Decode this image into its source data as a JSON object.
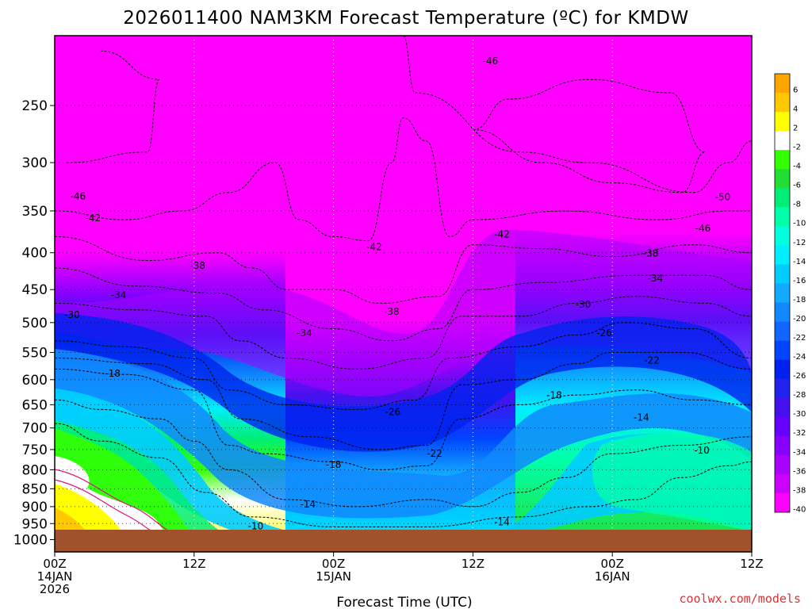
{
  "title": "2026011400 NAM3KM Forecast Temperature (ºC) for KMDW",
  "xlabel": "Forecast Time (UTC)",
  "credit": "coolwx.com/models",
  "colors": {
    "ground": "#a0522d",
    "warm_yellow": "#ffff00",
    "zero_white": "#ffffff",
    "cold_magenta": "#ff00ff"
  },
  "chart_data": {
    "type": "heatmap",
    "title": "2026011400 NAM3KM Forecast Temperature (ºC) for KMDW",
    "xlabel": "Forecast Time (UTC)",
    "ylabel": "",
    "x_ticks": [
      {
        "hour": 0,
        "lines": [
          "00Z",
          "14JAN",
          "2026"
        ]
      },
      {
        "hour": 12,
        "lines": [
          "12Z"
        ]
      },
      {
        "hour": 24,
        "lines": [
          "00Z",
          "15JAN"
        ]
      },
      {
        "hour": 36,
        "lines": [
          "12Z"
        ]
      },
      {
        "hour": 48,
        "lines": [
          "00Z",
          "16JAN"
        ]
      },
      {
        "hour": 60,
        "lines": [
          "12Z"
        ]
      }
    ],
    "xlim_hours": [
      0,
      60
    ],
    "y_ticks": [
      250,
      300,
      350,
      400,
      450,
      500,
      550,
      600,
      650,
      700,
      750,
      800,
      850,
      900,
      950,
      1000
    ],
    "ylim_hPa": [
      1040,
      200
    ],
    "y_scale": "log-pressure",
    "grid": true,
    "colorbar_ticks": [
      6,
      4,
      2,
      -2,
      -4,
      -6,
      -8,
      -10,
      -12,
      -14,
      -16,
      -18,
      -20,
      -22,
      -24,
      -26,
      -28,
      -30,
      -32,
      -34,
      -36,
      -38,
      -40
    ],
    "colorbar_colors": [
      "#ffa500",
      "#ffc800",
      "#ffff00",
      "#ffffff",
      "#33ff00",
      "#22dd33",
      "#00ee77",
      "#00ffaa",
      "#00ffdd",
      "#00eeff",
      "#00ccff",
      "#11aaff",
      "#1188ff",
      "#1166ff",
      "#0044ff",
      "#0022ee",
      "#2222ee",
      "#4411ee",
      "#6600ff",
      "#8800ff",
      "#aa00ff",
      "#cc00ff",
      "#ff00ff"
    ],
    "isotherms": [
      {
        "value": -46,
        "points": [
          [
            1,
            300
          ],
          [
            8,
            290
          ],
          [
            9,
            230
          ],
          [
            4,
            210
          ]
        ]
      },
      {
        "value": -46,
        "points": [
          [
            30,
            200
          ],
          [
            31,
            240
          ],
          [
            40,
            290
          ],
          [
            46,
            300
          ],
          [
            55,
            330
          ],
          [
            58,
            300
          ],
          [
            60,
            280
          ]
        ]
      },
      {
        "value": -50,
        "points": [
          [
            36,
            270
          ],
          [
            42,
            300
          ],
          [
            48,
            320
          ],
          [
            54,
            330
          ],
          [
            56,
            290
          ],
          [
            53,
            240
          ],
          [
            46,
            230
          ],
          [
            39,
            245
          ],
          [
            36,
            270
          ]
        ]
      },
      {
        "value": -42,
        "points": [
          [
            0,
            350
          ],
          [
            6,
            360
          ],
          [
            11,
            350
          ],
          [
            15,
            330
          ],
          [
            19,
            300
          ],
          [
            21,
            360
          ],
          [
            24,
            380
          ],
          [
            27,
            385
          ],
          [
            29,
            300
          ],
          [
            30,
            260
          ],
          [
            32,
            280
          ],
          [
            34,
            380
          ],
          [
            36,
            360
          ],
          [
            44,
            350
          ],
          [
            52,
            360
          ],
          [
            58,
            350
          ],
          [
            60,
            350
          ]
        ]
      },
      {
        "value": -38,
        "points": [
          [
            0,
            380
          ],
          [
            8,
            410
          ],
          [
            14,
            400
          ],
          [
            17,
            420
          ],
          [
            20,
            450
          ],
          [
            24,
            450
          ],
          [
            28,
            470
          ],
          [
            33,
            460
          ],
          [
            36,
            390
          ],
          [
            42,
            395
          ],
          [
            48,
            405
          ],
          [
            55,
            390
          ],
          [
            60,
            400
          ]
        ]
      },
      {
        "value": -34,
        "points": [
          [
            0,
            420
          ],
          [
            7,
            445
          ],
          [
            14,
            455
          ],
          [
            18,
            480
          ],
          [
            24,
            510
          ],
          [
            29,
            530
          ],
          [
            33,
            510
          ],
          [
            36,
            450
          ],
          [
            42,
            440
          ],
          [
            50,
            430
          ],
          [
            56,
            430
          ],
          [
            60,
            450
          ]
        ]
      },
      {
        "value": -30,
        "points": [
          [
            0,
            470
          ],
          [
            7,
            480
          ],
          [
            13,
            490
          ],
          [
            16,
            530
          ],
          [
            20,
            560
          ],
          [
            26,
            580
          ],
          [
            32,
            560
          ],
          [
            35,
            490
          ],
          [
            40,
            490
          ],
          [
            45,
            470
          ],
          [
            50,
            460
          ],
          [
            56,
            470
          ],
          [
            60,
            490
          ]
        ]
      },
      {
        "value": -26,
        "points": [
          [
            0,
            530
          ],
          [
            6,
            540
          ],
          [
            12,
            560
          ],
          [
            15,
            620
          ],
          [
            20,
            650
          ],
          [
            26,
            660
          ],
          [
            31,
            640
          ],
          [
            34,
            560
          ],
          [
            40,
            540
          ],
          [
            45,
            520
          ],
          [
            49,
            500
          ],
          [
            55,
            510
          ],
          [
            60,
            560
          ]
        ]
      },
      {
        "value": -22,
        "points": [
          [
            0,
            560
          ],
          [
            8,
            570
          ],
          [
            13,
            600
          ],
          [
            16,
            680
          ],
          [
            22,
            720
          ],
          [
            28,
            750
          ],
          [
            32,
            740
          ],
          [
            35,
            610
          ],
          [
            40,
            600
          ],
          [
            45,
            570
          ],
          [
            48,
            550
          ],
          [
            54,
            550
          ],
          [
            60,
            580
          ]
        ]
      },
      {
        "value": -18,
        "points": [
          [
            0,
            580
          ],
          [
            6,
            590
          ],
          [
            12,
            620
          ],
          [
            15,
            740
          ],
          [
            18,
            760
          ],
          [
            24,
            780
          ],
          [
            28,
            800
          ],
          [
            32,
            790
          ],
          [
            35,
            680
          ],
          [
            40,
            650
          ],
          [
            45,
            630
          ],
          [
            50,
            620
          ],
          [
            55,
            640
          ],
          [
            60,
            650
          ]
        ]
      },
      {
        "value": -14,
        "points": [
          [
            0,
            640
          ],
          [
            4,
            660
          ],
          [
            9,
            680
          ],
          [
            12,
            730
          ],
          [
            15,
            800
          ],
          [
            20,
            880
          ],
          [
            26,
            900
          ],
          [
            32,
            880
          ],
          [
            36,
            900
          ],
          [
            40,
            860
          ],
          [
            44,
            820
          ],
          [
            48,
            760
          ],
          [
            54,
            740
          ],
          [
            60,
            720
          ]
        ]
      },
      {
        "value": -10,
        "points": [
          [
            0,
            690
          ],
          [
            4,
            730
          ],
          [
            9,
            770
          ],
          [
            13,
            860
          ],
          [
            17,
            930
          ],
          [
            24,
            960
          ],
          [
            32,
            960
          ],
          [
            40,
            930
          ],
          [
            46,
            900
          ],
          [
            50,
            880
          ],
          [
            54,
            820
          ],
          [
            58,
            790
          ],
          [
            60,
            780
          ]
        ]
      }
    ],
    "isotherm_labels": [
      {
        "text": "-46",
        "hour": 2,
        "p": 334
      },
      {
        "text": "-42",
        "hour": 3.3,
        "p": 358
      },
      {
        "text": "-38",
        "hour": 12.3,
        "p": 417
      },
      {
        "text": "-34",
        "hour": 5.5,
        "p": 458
      },
      {
        "text": "-30",
        "hour": 1.5,
        "p": 488
      },
      {
        "text": "-34",
        "hour": 21.5,
        "p": 517
      },
      {
        "text": "-42",
        "hour": 27.5,
        "p": 393
      },
      {
        "text": "-38",
        "hour": 29,
        "p": 483
      },
      {
        "text": "-46",
        "hour": 37.5,
        "p": 217
      },
      {
        "text": "-42",
        "hour": 38.5,
        "p": 377
      },
      {
        "text": "-50",
        "hour": 57.5,
        "p": 335
      },
      {
        "text": "-46",
        "hour": 55.8,
        "p": 370
      },
      {
        "text": "-38",
        "hour": 51.3,
        "p": 401
      },
      {
        "text": "-34",
        "hour": 51.7,
        "p": 434
      },
      {
        "text": "-30",
        "hour": 45.5,
        "p": 472
      },
      {
        "text": "-26",
        "hour": 47.3,
        "p": 517
      },
      {
        "text": "-22",
        "hour": 51.4,
        "p": 564
      },
      {
        "text": "-18",
        "hour": 5,
        "p": 588
      },
      {
        "text": "-26",
        "hour": 29.1,
        "p": 665
      },
      {
        "text": "-18",
        "hour": 43,
        "p": 631
      },
      {
        "text": "-14",
        "hour": 50.5,
        "p": 677
      },
      {
        "text": "-10",
        "hour": 55.7,
        "p": 752
      },
      {
        "text": "-22",
        "hour": 32.7,
        "p": 760
      },
      {
        "text": "-18",
        "hour": 24,
        "p": 787
      },
      {
        "text": "-14",
        "hour": 21.8,
        "p": 893
      },
      {
        "text": "-10",
        "hour": 17.3,
        "p": 958
      },
      {
        "text": "-14",
        "hour": 38.5,
        "p": 946
      }
    ]
  }
}
